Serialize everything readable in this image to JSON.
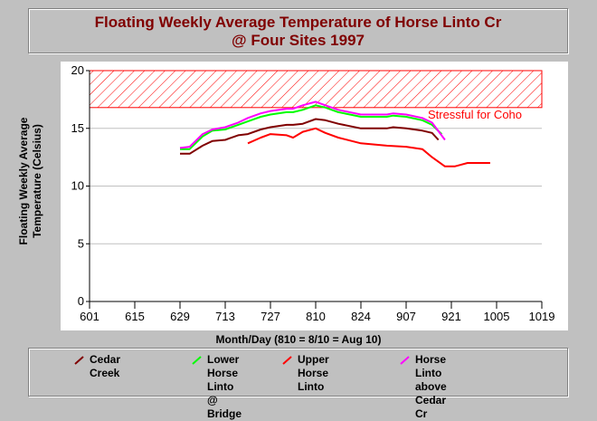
{
  "chart_data": {
    "type": "line",
    "title_line1": "Floating Weekly Average Temperature of Horse Linto Cr",
    "title_line2": "@ Four Sites 1997",
    "ylabel_line1": "Floating Weekly Average",
    "ylabel_line2": "Temperature (Celsius)",
    "xlabel": "Month/Day (810 = 8/10 = Aug 10)",
    "x_ticks": [
      "601",
      "615",
      "629",
      "713",
      "727",
      "810",
      "824",
      "907",
      "921",
      "1005",
      "1019"
    ],
    "y_ticks": [
      "0",
      "5",
      "10",
      "15",
      "20"
    ],
    "ylim": [
      0,
      20
    ],
    "grid": true,
    "band": {
      "from": 16.8,
      "to": 20,
      "label": "Stressful for Coho",
      "color": "#ff0000"
    },
    "series": [
      {
        "name": "Cedar Creek",
        "color": "#800000",
        "x": [
          "6/29",
          "7/2",
          "7/6",
          "7/9",
          "7/13",
          "7/17",
          "7/20",
          "7/24",
          "7/27",
          "8/1",
          "8/3",
          "8/6",
          "8/10",
          "8/13",
          "8/17",
          "8/24",
          "9/1",
          "9/3",
          "9/7",
          "9/12",
          "9/15",
          "9/17"
        ],
        "values": [
          12.8,
          12.8,
          13.5,
          13.9,
          14.0,
          14.4,
          14.5,
          14.9,
          15.1,
          15.3,
          15.3,
          15.4,
          15.8,
          15.7,
          15.4,
          15.0,
          15.0,
          15.1,
          15.0,
          14.8,
          14.6,
          14.0
        ]
      },
      {
        "name": "Lower Horse Linto @ Bridge",
        "color": "#00ff00",
        "x": [
          "6/29",
          "7/2",
          "7/6",
          "7/9",
          "7/13",
          "7/17",
          "7/20",
          "7/24",
          "7/27",
          "8/1",
          "8/3",
          "8/6",
          "8/10",
          "8/13",
          "8/17",
          "8/24",
          "9/1",
          "9/3",
          "9/7",
          "9/12",
          "9/15",
          "9/18"
        ],
        "values": [
          13.2,
          13.2,
          14.3,
          14.8,
          14.9,
          15.3,
          15.6,
          16.0,
          16.2,
          16.4,
          16.4,
          16.6,
          17.0,
          16.8,
          16.4,
          16.0,
          16.0,
          16.1,
          16.0,
          15.7,
          15.3,
          14.5
        ]
      },
      {
        "name": "Upper Horse Linto",
        "color": "#ff0000",
        "x": [
          "7/20",
          "7/24",
          "7/27",
          "8/1",
          "8/3",
          "8/6",
          "8/10",
          "8/13",
          "8/17",
          "8/24",
          "9/1",
          "9/7",
          "9/12",
          "9/15",
          "9/19",
          "9/22",
          "9/26",
          "9/29",
          "10/3"
        ],
        "values": [
          13.7,
          14.2,
          14.5,
          14.4,
          14.2,
          14.7,
          15.0,
          14.6,
          14.2,
          13.7,
          13.5,
          13.4,
          13.2,
          12.5,
          11.7,
          11.7,
          12.0,
          12.0,
          12.0
        ]
      },
      {
        "name": "Horse Linto above Cedar Cr",
        "color": "#ff00ff",
        "x": [
          "6/29",
          "7/2",
          "7/6",
          "7/9",
          "7/13",
          "7/17",
          "7/20",
          "7/24",
          "7/27",
          "8/1",
          "8/3",
          "8/6",
          "8/10",
          "8/13",
          "8/17",
          "8/24",
          "9/1",
          "9/3",
          "9/7",
          "9/12",
          "9/15",
          "9/19"
        ],
        "values": [
          13.3,
          13.4,
          14.5,
          14.9,
          15.1,
          15.5,
          15.9,
          16.3,
          16.5,
          16.7,
          16.7,
          17.0,
          17.3,
          17.0,
          16.6,
          16.2,
          16.2,
          16.3,
          16.2,
          15.9,
          15.5,
          14.0
        ]
      }
    ]
  },
  "legend_lines": [
    [
      "Cedar Creek"
    ],
    [
      "Lower Horse",
      "Linto @",
      "Bridge"
    ],
    [
      "Upper Horse",
      "Linto"
    ],
    [
      "Horse Linto",
      "above Cedar",
      "Cr"
    ]
  ]
}
